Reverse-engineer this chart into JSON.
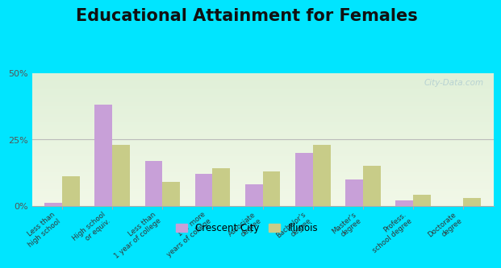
{
  "title": "Educational Attainment for Females",
  "categories": [
    "Less than\nhigh school",
    "High school\nor equiv.",
    "Less than\n1 year of college",
    "1 or more\nyears of college",
    "Associate\ndegree",
    "Bachelor's\ndegree",
    "Master's\ndegree",
    "Profess.\nschool degree",
    "Doctorate\ndegree"
  ],
  "crescent_city": [
    1.0,
    38.0,
    17.0,
    12.0,
    8.0,
    20.0,
    10.0,
    2.0,
    0.0
  ],
  "illinois": [
    11.0,
    23.0,
    9.0,
    14.0,
    13.0,
    23.0,
    15.0,
    4.0,
    3.0
  ],
  "crescent_color": "#c8a0d8",
  "illinois_color": "#c8cc88",
  "ylim": [
    0,
    50
  ],
  "yticks": [
    0,
    25,
    50
  ],
  "ytick_labels": [
    "0%",
    "25%",
    "50%"
  ],
  "plot_bg_top": "#f2f8e8",
  "plot_bg_bottom": "#e0f0d8",
  "outer_bg": "#00e5ff",
  "bar_width": 0.35,
  "title_fontsize": 15,
  "legend_crescent": "Crescent City",
  "legend_illinois": "Illinois",
  "watermark": "City-Data.com"
}
